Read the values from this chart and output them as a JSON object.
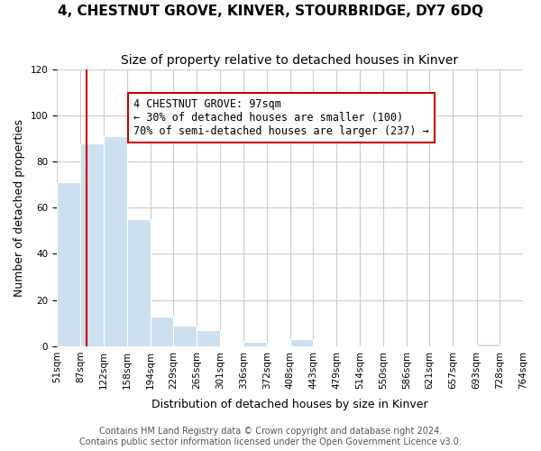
{
  "title": "4, CHESTNUT GROVE, KINVER, STOURBRIDGE, DY7 6DQ",
  "subtitle": "Size of property relative to detached houses in Kinver",
  "xlabel": "Distribution of detached houses by size in Kinver",
  "ylabel": "Number of detached properties",
  "bar_edges": [
    51,
    87,
    122,
    158,
    194,
    229,
    265,
    301,
    336,
    372,
    408,
    443,
    479,
    514,
    550,
    586,
    621,
    657,
    693,
    728,
    764
  ],
  "bar_heights": [
    71,
    88,
    91,
    55,
    13,
    9,
    7,
    0,
    2,
    0,
    3,
    0,
    0,
    0,
    0,
    0,
    0,
    0,
    1,
    0
  ],
  "bar_color": "#cce0f0",
  "bar_edgecolor": "#ffffff",
  "property_line_x": 97,
  "property_line_color": "#cc0000",
  "annotation_box_text": "4 CHESTNUT GROVE: 97sqm\n← 30% of detached houses are smaller (100)\n70% of semi-detached houses are larger (237) →",
  "annotation_box_edgecolor": "#cc0000",
  "annotation_box_facecolor": "#ffffff",
  "ylim": [
    0,
    120
  ],
  "yticks": [
    0,
    20,
    40,
    60,
    80,
    100,
    120
  ],
  "tick_labels": [
    "51sqm",
    "87sqm",
    "122sqm",
    "158sqm",
    "194sqm",
    "229sqm",
    "265sqm",
    "301sqm",
    "336sqm",
    "372sqm",
    "408sqm",
    "443sqm",
    "479sqm",
    "514sqm",
    "550sqm",
    "586sqm",
    "621sqm",
    "657sqm",
    "693sqm",
    "728sqm",
    "764sqm"
  ],
  "footer_line1": "Contains HM Land Registry data © Crown copyright and database right 2024.",
  "footer_line2": "Contains public sector information licensed under the Open Government Licence v3.0.",
  "title_fontsize": 11,
  "subtitle_fontsize": 10,
  "axis_label_fontsize": 9,
  "tick_fontsize": 7.5,
  "annotation_fontsize": 8.5,
  "footer_fontsize": 7,
  "background_color": "#ffffff",
  "grid_color": "#cccccc"
}
